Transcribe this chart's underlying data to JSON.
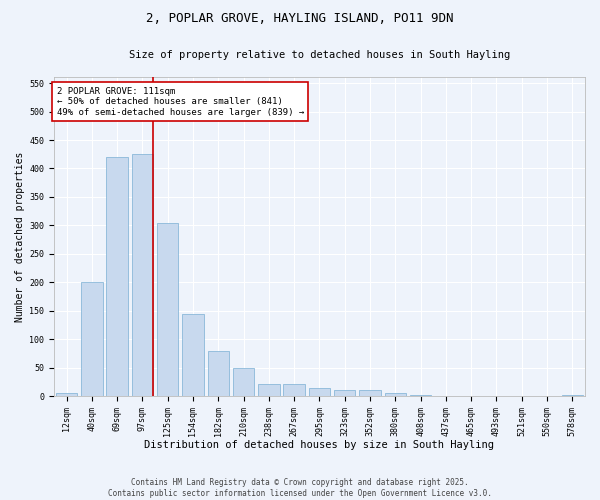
{
  "title": "2, POPLAR GROVE, HAYLING ISLAND, PO11 9DN",
  "subtitle": "Size of property relative to detached houses in South Hayling",
  "xlabel": "Distribution of detached houses by size in South Hayling",
  "ylabel": "Number of detached properties",
  "categories": [
    "12sqm",
    "40sqm",
    "69sqm",
    "97sqm",
    "125sqm",
    "154sqm",
    "182sqm",
    "210sqm",
    "238sqm",
    "267sqm",
    "295sqm",
    "323sqm",
    "352sqm",
    "380sqm",
    "408sqm",
    "437sqm",
    "465sqm",
    "493sqm",
    "521sqm",
    "550sqm",
    "578sqm"
  ],
  "values": [
    5,
    200,
    420,
    425,
    305,
    145,
    80,
    50,
    22,
    22,
    15,
    10,
    10,
    5,
    2,
    0,
    0,
    0,
    0,
    0,
    2
  ],
  "bar_color": "#c8d9ee",
  "bar_edge_color": "#7aafd4",
  "background_color": "#eef3fb",
  "grid_color": "#ffffff",
  "annotation_box_text": "2 POPLAR GROVE: 111sqm\n← 50% of detached houses are smaller (841)\n49% of semi-detached houses are larger (839) →",
  "annotation_box_color": "#ffffff",
  "annotation_box_edge_color": "#cc0000",
  "vline_color": "#cc0000",
  "ylim": [
    0,
    560
  ],
  "yticks": [
    0,
    50,
    100,
    150,
    200,
    250,
    300,
    350,
    400,
    450,
    500,
    550
  ],
  "footer_text": "Contains HM Land Registry data © Crown copyright and database right 2025.\nContains public sector information licensed under the Open Government Licence v3.0.",
  "title_fontsize": 9,
  "subtitle_fontsize": 7.5,
  "xlabel_fontsize": 7.5,
  "ylabel_fontsize": 7,
  "tick_fontsize": 6,
  "annotation_fontsize": 6.5,
  "footer_fontsize": 5.5
}
